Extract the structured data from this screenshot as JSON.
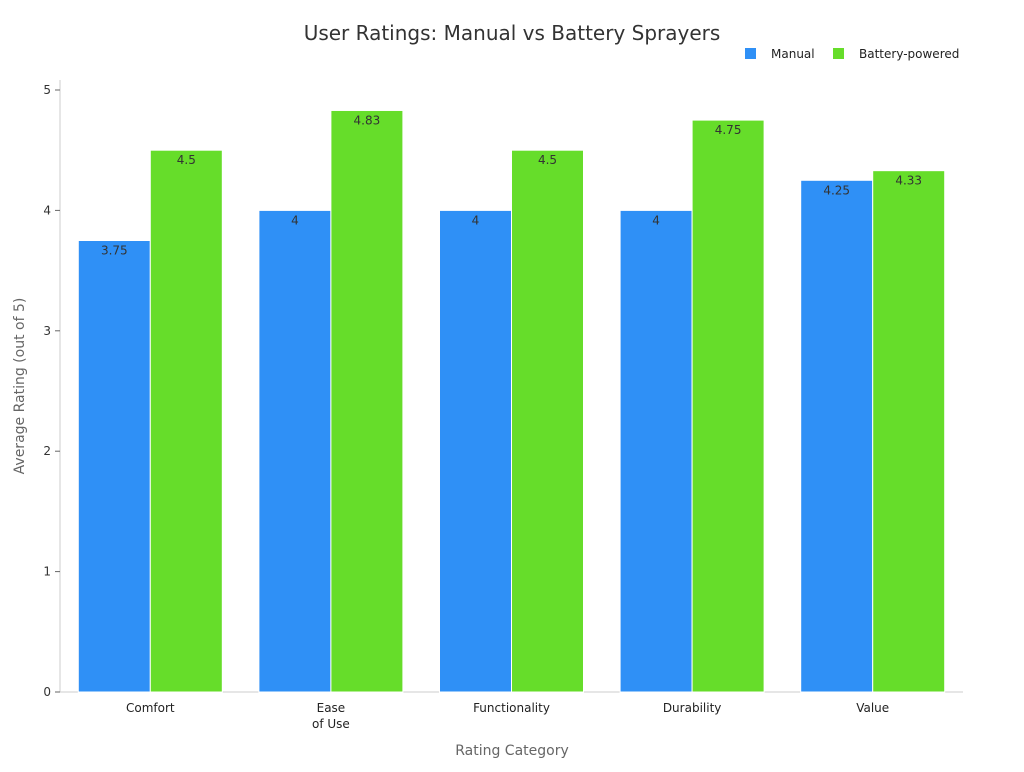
{
  "chart_data": {
    "type": "bar",
    "title": "User Ratings: Manual vs Battery Sprayers",
    "xlabel": "Rating Category",
    "ylabel": "Average Rating (out of 5)",
    "ylim": [
      0,
      5
    ],
    "yticks": [
      "0",
      "1",
      "2",
      "3",
      "4",
      "5"
    ],
    "categories": [
      [
        "Comfort"
      ],
      [
        "Ease",
        "of Use"
      ],
      [
        "Functionality"
      ],
      [
        "Durability"
      ],
      [
        "Value"
      ]
    ],
    "series": [
      {
        "name": "Manual",
        "color": "#2f90f6",
        "values": [
          3.75,
          4,
          4,
          4,
          4.25
        ],
        "labels": [
          "3.75",
          "4",
          "4",
          "4",
          "4.25"
        ]
      },
      {
        "name": "Battery-powered",
        "color": "#66dd2a",
        "values": [
          4.5,
          4.83,
          4.5,
          4.75,
          4.33
        ],
        "labels": [
          "4.5",
          "4.83",
          "4.5",
          "4.75",
          "4.33"
        ]
      }
    ],
    "legend_position": "top-right",
    "grid": false
  }
}
